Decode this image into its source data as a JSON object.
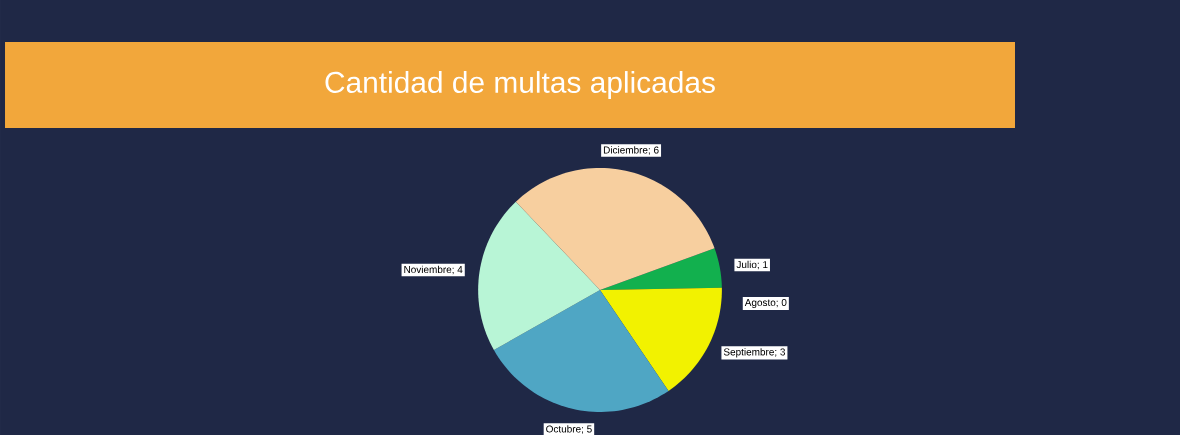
{
  "chart_data": {
    "type": "pie",
    "title": "Cantidad de multas aplicadas",
    "categories": [
      "Julio",
      "Agosto",
      "Septiembre",
      "Octubre",
      "Noviembre",
      "Diciembre"
    ],
    "values": [
      1,
      0,
      3,
      5,
      4,
      6
    ],
    "colors": [
      "#12b04e",
      "#c0504d",
      "#f2f200",
      "#4fa6c4",
      "#b8f5d6",
      "#f7cf9f"
    ],
    "value_labels": [
      "; 1",
      "; 0",
      "; 3",
      "; 5",
      "; 4",
      "; 6"
    ]
  }
}
